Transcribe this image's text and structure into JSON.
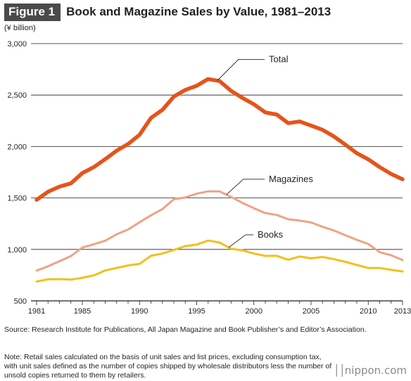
{
  "header": {
    "figure_label": "Figure 1",
    "title": "Book and Magazine Sales by Value, 1981–2013"
  },
  "unit_label": "(¥ billion)",
  "chart_data": {
    "type": "line",
    "x": [
      1981,
      1982,
      1983,
      1984,
      1985,
      1986,
      1987,
      1988,
      1989,
      1990,
      1991,
      1992,
      1993,
      1994,
      1995,
      1996,
      1997,
      1998,
      1999,
      2000,
      2001,
      2002,
      2003,
      2004,
      2005,
      2006,
      2007,
      2008,
      2009,
      2010,
      2011,
      2012,
      2013
    ],
    "series": [
      {
        "name": "Total",
        "color": "#e5541b",
        "width": 5.5,
        "values": [
          1482,
          1560,
          1610,
          1642,
          1742,
          1800,
          1877,
          1960,
          2024,
          2114,
          2277,
          2356,
          2485,
          2550,
          2590,
          2656,
          2636,
          2541,
          2472,
          2410,
          2331,
          2310,
          2227,
          2243,
          2203,
          2162,
          2098,
          2018,
          1935,
          1875,
          1800,
          1733,
          1682
        ]
      },
      {
        "name": "Magazines",
        "color": "#f0a283",
        "width": 3,
        "values": [
          794,
          836,
          885,
          936,
          1018,
          1050,
          1085,
          1147,
          1193,
          1264,
          1331,
          1392,
          1488,
          1505,
          1542,
          1564,
          1564,
          1510,
          1452,
          1400,
          1353,
          1335,
          1293,
          1280,
          1262,
          1220,
          1184,
          1138,
          1093,
          1053,
          973,
          943,
          897
        ]
      },
      {
        "name": "Books",
        "color": "#f2c01c",
        "width": 3,
        "values": [
          688,
          709,
          712,
          706,
          725,
          748,
          795,
          820,
          844,
          859,
          938,
          960,
          995,
          1032,
          1047,
          1086,
          1067,
          1007,
          991,
          960,
          937,
          938,
          899,
          931,
          913,
          927,
          905,
          879,
          849,
          820,
          820,
          801,
          786
        ]
      }
    ],
    "xlim": [
      1981,
      2013
    ],
    "ylim": [
      500,
      3000
    ],
    "yticks": [
      500,
      1000,
      1500,
      2000,
      2500,
      3000
    ],
    "ytick_labels": [
      "500",
      "1,000",
      "1,500",
      "2,000",
      "2,500",
      "3,000"
    ],
    "xticks": [
      1981,
      1985,
      1990,
      1995,
      2000,
      2005,
      2010,
      2013
    ],
    "xtick_labels": [
      "1981",
      "1985",
      "1990",
      "1995",
      "2000",
      "2005",
      "2010",
      "2013"
    ],
    "grid": true,
    "annotations": [
      {
        "series": "Total",
        "text": "Total",
        "anchor_year": 1996.8
      },
      {
        "series": "Magazines",
        "text": "Magazines",
        "anchor_year": 1997.6
      },
      {
        "series": "Books",
        "text": "Books",
        "anchor_year": 1997.8
      }
    ]
  },
  "footer": {
    "source": "Source: Research Institute for Publications, All Japan Magazine and Book Publisher’s and Editor’s Association.",
    "note": "Note: Retail sales calculated on the basis of unit sales and list prices, excluding consumption tax, with unit sales defined as the number of copies shipped by wholesale distributors less the number of unsold copies returned to them by retailers.",
    "brand_bars": "││",
    "brand": "nippon.com"
  }
}
